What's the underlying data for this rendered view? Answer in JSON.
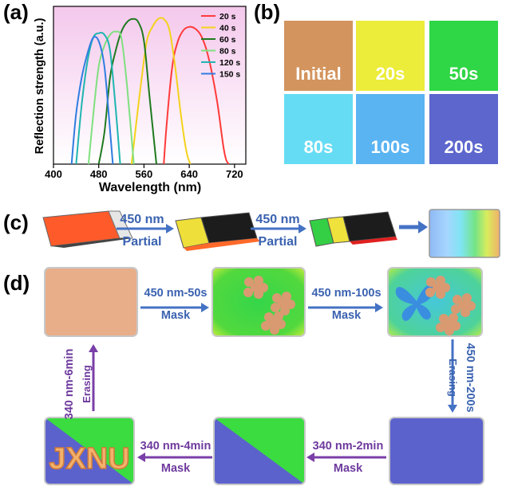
{
  "panels": {
    "a": "(a)",
    "b": "(b)",
    "c": "(c)",
    "d": "(d)"
  },
  "chart_data": {
    "type": "line",
    "xlabel": "Wavelength (nm)",
    "ylabel": "Reflection strength (a.u.)",
    "xlim": [
      400,
      740
    ],
    "ylim": [
      0,
      1
    ],
    "xticks": [
      "400",
      "480",
      "560",
      "640",
      "720"
    ],
    "xtick_values": [
      400,
      480,
      560,
      640,
      720
    ],
    "legend_position": "top-right",
    "series": [
      {
        "name": "20 s",
        "color": "#ff3a3a",
        "x": [
          595,
          600,
          610,
          620,
          630,
          640,
          650,
          660,
          670,
          680,
          690,
          700,
          705,
          710
        ],
        "y": [
          0.0,
          0.25,
          0.62,
          0.78,
          0.85,
          0.87,
          0.86,
          0.82,
          0.73,
          0.58,
          0.38,
          0.12,
          0.03,
          0.0
        ]
      },
      {
        "name": "40 s",
        "color": "#f4d21c",
        "x": [
          538,
          545,
          555,
          565,
          575,
          585,
          595,
          605,
          615,
          625,
          635,
          642
        ],
        "y": [
          0.0,
          0.22,
          0.52,
          0.78,
          0.87,
          0.92,
          0.92,
          0.85,
          0.62,
          0.32,
          0.08,
          0.0
        ]
      },
      {
        "name": "60 s",
        "color": "#1f7a1f",
        "x": [
          480,
          490,
          500,
          510,
          520,
          530,
          540,
          550,
          560,
          570,
          582
        ],
        "y": [
          0.0,
          0.2,
          0.55,
          0.72,
          0.84,
          0.9,
          0.92,
          0.9,
          0.78,
          0.42,
          0.0
        ]
      },
      {
        "name": "80 s",
        "color": "#7fe07f",
        "x": [
          462,
          470,
          480,
          490,
          500,
          510,
          520,
          530,
          542
        ],
        "y": [
          0.0,
          0.3,
          0.62,
          0.75,
          0.82,
          0.84,
          0.8,
          0.5,
          0.0
        ]
      },
      {
        "name": "120 s",
        "color": "#1fb5b0",
        "x": [
          440,
          450,
          460,
          470,
          480,
          490,
          500,
          510,
          518
        ],
        "y": [
          0.0,
          0.38,
          0.65,
          0.8,
          0.83,
          0.82,
          0.72,
          0.35,
          0.0
        ]
      },
      {
        "name": "150 s",
        "color": "#2f7de0",
        "x": [
          432,
          440,
          450,
          460,
          470,
          480,
          490,
          498,
          505
        ],
        "y": [
          0.0,
          0.32,
          0.55,
          0.7,
          0.8,
          0.78,
          0.62,
          0.3,
          0.0
        ]
      }
    ]
  },
  "swatches": [
    {
      "label": "Initial",
      "color": "#d3945e"
    },
    {
      "label": "20s",
      "color": "#ecec3a"
    },
    {
      "label": "50s",
      "color": "#2fd645"
    },
    {
      "label": "80s",
      "color": "#66dcf4"
    },
    {
      "label": "100s",
      "color": "#5ab4f2"
    },
    {
      "label": "200s",
      "color": "#5c66cd"
    }
  ],
  "panel_c": {
    "step1_top": "450 nm",
    "step1_bottom": "Partial",
    "step2_top": "450 nm",
    "step2_bottom": "Partial"
  },
  "panel_d": {
    "step1_top": "450 nm-50s",
    "step1_bottom": "Mask",
    "step2_top": "450 nm-100s",
    "step2_bottom": "Mask",
    "step3_top": "450 nm-200s",
    "step3_bottom": "Erasing",
    "step4_top": "340 nm-2min",
    "step4_bottom": "Mask",
    "step5_top": "340 nm-4min",
    "step5_bottom": "Mask",
    "step6_top": "340 nm-6min",
    "step6_bottom": "Erasing",
    "pattern_text": "JXNU"
  }
}
